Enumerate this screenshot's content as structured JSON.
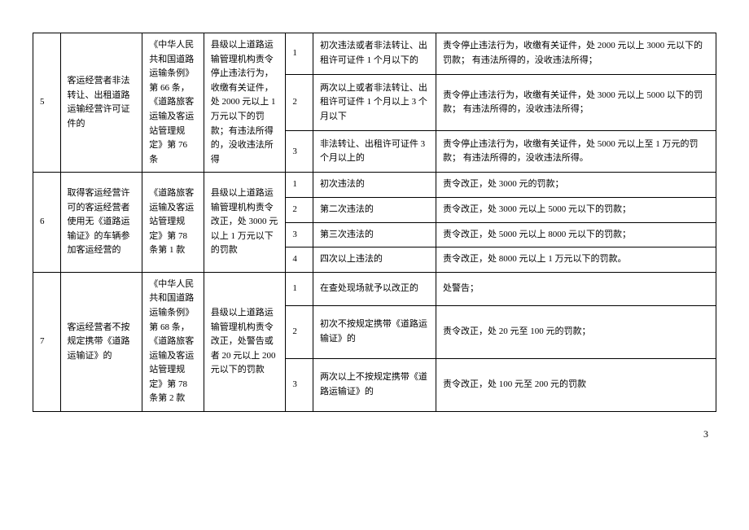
{
  "page_number": "3",
  "groups": [
    {
      "index": "5",
      "violation": "客运经营者非法转让、出租道路运输经营许可证件的",
      "basis": "《中华人民共和国道路运输条例》第 66 条，《道路旅客运输及客运站管理规定》第 76 条",
      "penalty": "县级以上道路运输管理机构责令停止违法行为，收缴有关证件，处 2000 元以上 1 万元以下的罚款；有违法所得的，没收违法所得",
      "rows": [
        {
          "sub": "1",
          "condition": "初次违法或者非法转让、出租许可证件 1 个月以下的",
          "result": "责令停止违法行为，收缴有关证件，处 2000 元以上 3000 元以下的罚款； 有违法所得的，没收违法所得；"
        },
        {
          "sub": "2",
          "condition": "两次以上或者非法转让、出租许可证件 1 个月以上 3 个月以下",
          "result": "责令停止违法行为，收缴有关证件，处 3000 元以上 5000 以下的罚款； 有违法所得的，没收违法所得；"
        },
        {
          "sub": "3",
          "condition": "非法转让、出租许可证件 3 个月以上的",
          "result": "责令停止违法行为，收缴有关证件，处 5000 元以上至 1 万元的罚款； 有违法所得的，没收违法所得。"
        }
      ]
    },
    {
      "index": "6",
      "violation": "取得客运经营许可的客运经营者使用无《道路运输证》的车辆参加客运经营的",
      "basis": "《道路旅客运输及客运站管理规定》第 78 条第 1 款",
      "penalty": "县级以上道路运输管理机构责令改正，处 3000 元以上 1 万元以下的罚款",
      "rows": [
        {
          "sub": "1",
          "condition": "初次违法的",
          "result": "责令改正，处 3000 元的罚款；"
        },
        {
          "sub": "2",
          "condition": "第二次违法的",
          "result": "责令改正，处 3000 元以上 5000 元以下的罚款；"
        },
        {
          "sub": "3",
          "condition": "第三次违法的",
          "result": "责令改正，处 5000 元以上 8000 元以下的罚款；"
        },
        {
          "sub": "4",
          "condition": "四次以上违法的",
          "result": "责令改正，处 8000 元以上 1 万元以下的罚款。"
        }
      ]
    },
    {
      "index": "7",
      "violation": "客运经营者不按规定携带《道路运输证》的",
      "basis": "《中华人民共和国道路运输条例》第 68 条，《道路旅客运输及客运站管理规定》第 78 条第 2 款",
      "penalty": "县级以上道路运输管理机构责令改正，处警告或者 20 元以上 200 元以下的罚款",
      "rows": [
        {
          "sub": "1",
          "condition": "在查处现场就予以改正的",
          "result": "处警告；"
        },
        {
          "sub": "2",
          "condition": "初次不按规定携带《道路运输证》的",
          "result": "责令改正，处 20 元至 100 元的罚款；"
        },
        {
          "sub": "3",
          "condition": "两次以上不按规定携带《道路运输证》的",
          "result": "责令改正，处 100 元至 200 元的罚款"
        }
      ]
    }
  ]
}
